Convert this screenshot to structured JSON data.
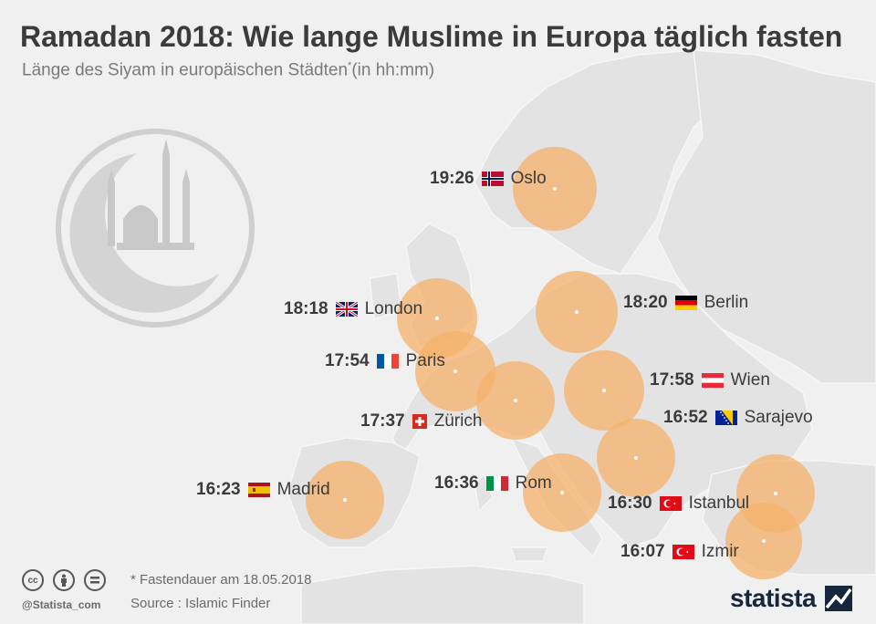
{
  "title": "Ramadan 2018: Wie lange Muslime in Europa täglich fasten",
  "subtitle": "Länge des Siyam in europäischen Städten",
  "subtitle_mark": "*",
  "subtitle_unit": "(in hh:mm)",
  "colors": {
    "bubble": "#f5b26b",
    "map": "#e2e2e2",
    "background": "#f0f0f0",
    "text": "#3b3b3b"
  },
  "cities": [
    {
      "name": "Oslo",
      "time": "19:26",
      "flag": "norway-flag"
    },
    {
      "name": "London",
      "time": "18:18",
      "flag": "uk-flag"
    },
    {
      "name": "Berlin",
      "time": "18:20",
      "flag": "germany-flag"
    },
    {
      "name": "Paris",
      "time": "17:54",
      "flag": "france-flag"
    },
    {
      "name": "Wien",
      "time": "17:58",
      "flag": "austria-flag"
    },
    {
      "name": "Zürich",
      "time": "17:37",
      "flag": "switzerland-flag"
    },
    {
      "name": "Sarajevo",
      "time": "16:52",
      "flag": "bosnia-flag"
    },
    {
      "name": "Madrid",
      "time": "16:23",
      "flag": "spain-flag"
    },
    {
      "name": "Rom",
      "time": "16:36",
      "flag": "italy-flag"
    },
    {
      "name": "Istanbul",
      "time": "16:30",
      "flag": "turkey-flag"
    },
    {
      "name": "Izmir",
      "time": "16:07",
      "flag": "turkey-flag"
    }
  ],
  "footnote": "* Fastendauer am 18.05.2018",
  "source": "Source : Islamic Finder",
  "handle": "@Statista_com",
  "brand": "statista",
  "icons": [
    "crescent-mosque-icon",
    "creative-commons-icon",
    "attribution-icon",
    "no-derivatives-icon",
    "statista-logo-icon"
  ]
}
